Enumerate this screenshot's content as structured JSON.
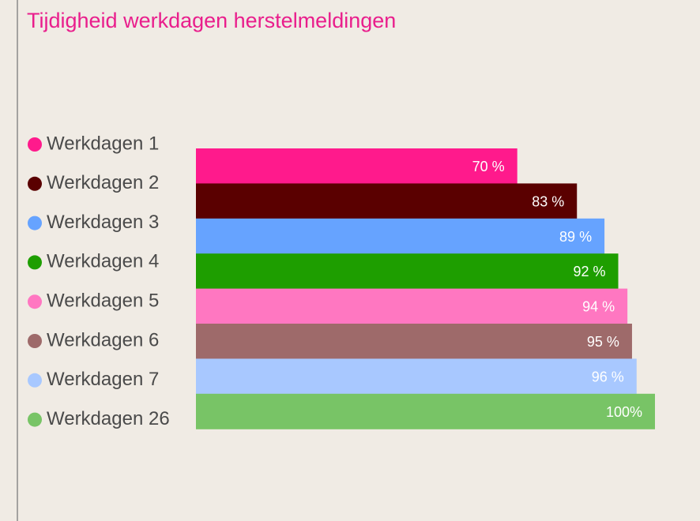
{
  "chart_data": {
    "type": "bar",
    "orientation": "horizontal",
    "title": "Tijdigheid werkdagen herstelmeldingen",
    "categories": [
      "Werkdagen 1",
      "Werkdagen 2",
      "Werkdagen 3",
      "Werkdagen 4",
      "Werkdagen 5",
      "Werkdagen 6",
      "Werkdagen 7",
      "Werkdagen 26"
    ],
    "values": [
      70,
      83,
      89,
      92,
      94,
      95,
      96,
      100
    ],
    "value_labels": [
      "70 %",
      "83 %",
      "89 %",
      "92 %",
      "94 %",
      "95 %",
      "96 %",
      "100%"
    ],
    "colors": [
      "#ff1a8c",
      "#5a0000",
      "#66a3ff",
      "#1e9e00",
      "#ff77c1",
      "#9e6a6a",
      "#a8c8ff",
      "#78c466"
    ],
    "xlim": [
      0,
      100
    ],
    "legend": "left"
  }
}
